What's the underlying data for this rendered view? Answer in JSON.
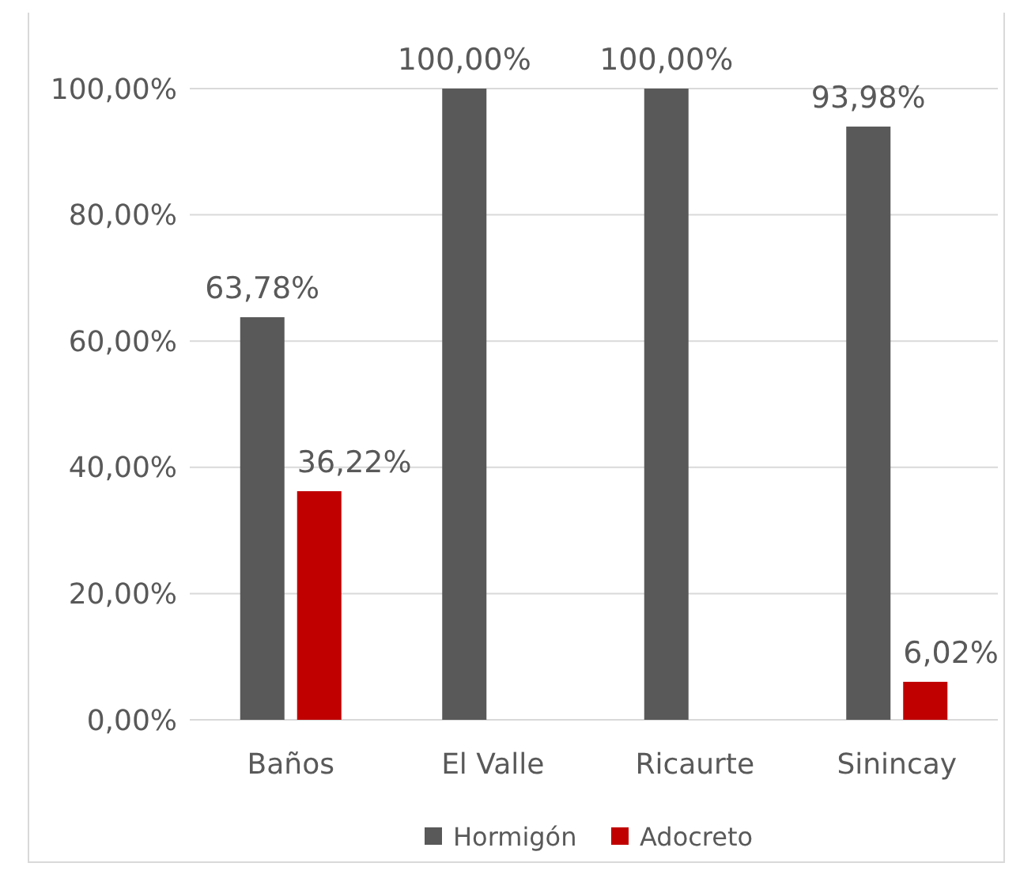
{
  "chart_data": {
    "type": "bar",
    "categories": [
      "Baños",
      "El Valle",
      "Ricaurte",
      "Sinincay"
    ],
    "series": [
      {
        "name": "Hormigón",
        "color": "#595959",
        "values": [
          63.78,
          100,
          100,
          93.98
        ],
        "value_labels": [
          "63,78%",
          "100,00%",
          "100,00%",
          "93,98%"
        ]
      },
      {
        "name": "Adocreto",
        "color": "#c00000",
        "values": [
          36.22,
          null,
          null,
          6.02
        ],
        "value_labels": [
          "36,22%",
          null,
          null,
          "6,02%"
        ]
      }
    ],
    "ylim": [
      0,
      100
    ],
    "yticks": [
      {
        "value": 0,
        "label": "0,00%"
      },
      {
        "value": 20,
        "label": "20,00%"
      },
      {
        "value": 40,
        "label": "40,00%"
      },
      {
        "value": 60,
        "label": "60,00%"
      },
      {
        "value": 80,
        "label": "80,00%"
      },
      {
        "value": 100,
        "label": "100,00%"
      }
    ],
    "grid": "y",
    "legend": "bottom"
  }
}
